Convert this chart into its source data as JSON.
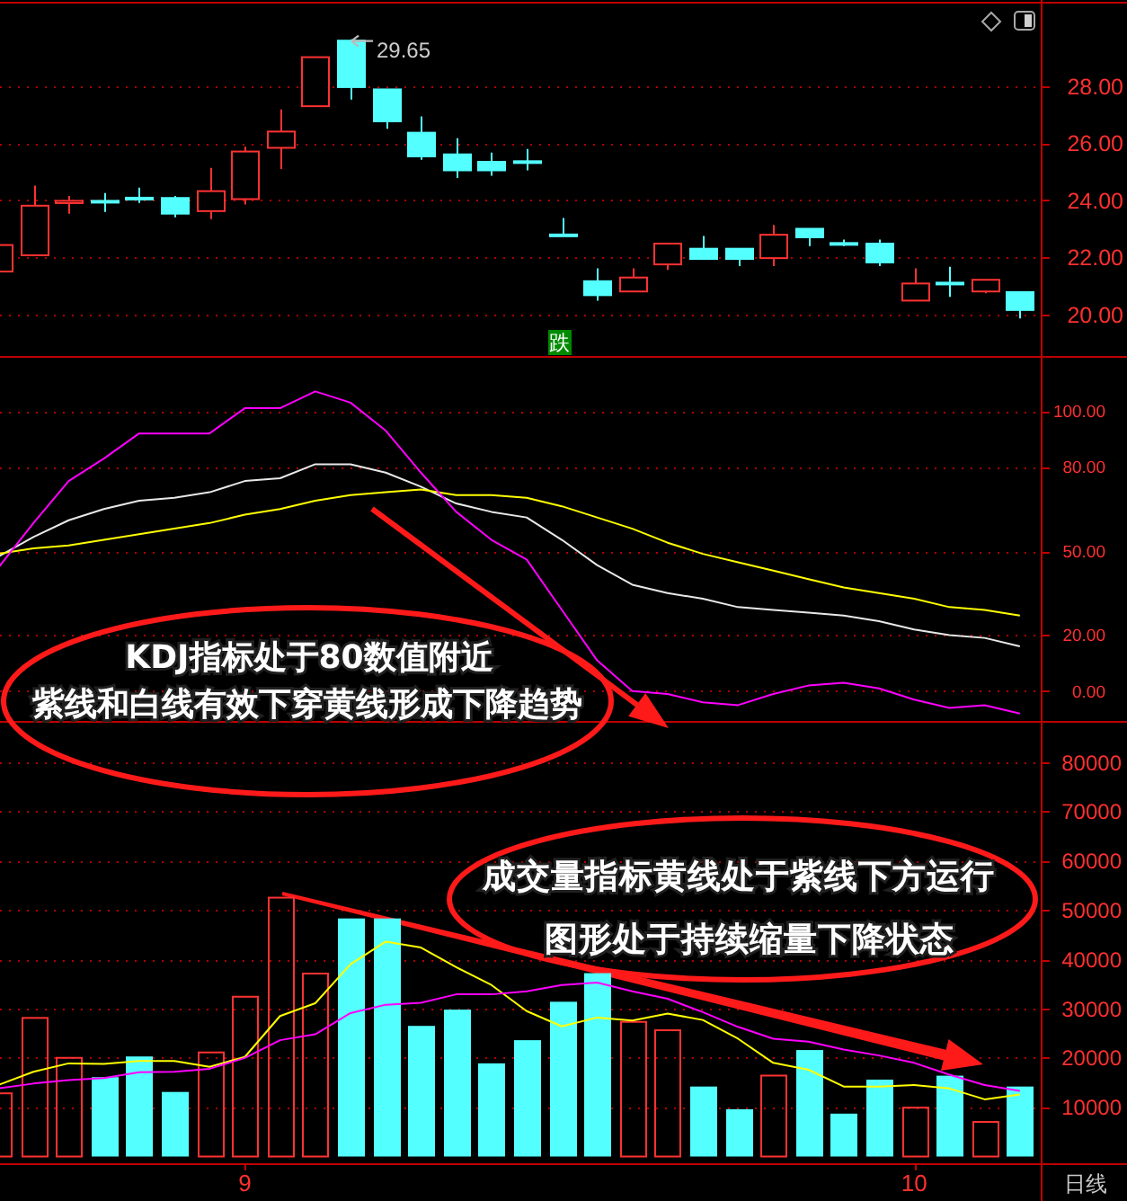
{
  "chart_data": [
    {
      "type": "candlestick",
      "categories": [
        null,
        null,
        null,
        null,
        null,
        null,
        null,
        "9",
        null,
        null,
        null,
        null,
        null,
        null,
        null,
        null,
        null,
        null,
        null,
        null,
        null,
        null,
        null,
        null,
        null,
        null,
        "10",
        null,
        null,
        null
      ],
      "ohlc": [
        [
          21.5,
          22.43,
          21.5,
          22.43
        ],
        [
          22.07,
          24.51,
          22.07,
          23.81
        ],
        [
          23.9,
          24.15,
          23.53,
          23.98
        ],
        [
          23.98,
          24.25,
          23.59,
          23.96
        ],
        [
          24.09,
          24.44,
          23.91,
          24.07
        ],
        [
          24.08,
          24.15,
          23.4,
          23.53
        ],
        [
          23.62,
          25.14,
          23.34,
          24.32
        ],
        [
          24.04,
          25.88,
          23.85,
          25.71
        ],
        [
          25.84,
          27.19,
          25.1,
          26.41
        ],
        [
          27.3,
          29.02,
          27.3,
          29.02
        ],
        [
          29.6,
          29.65,
          27.53,
          27.97
        ],
        [
          27.89,
          27.89,
          26.51,
          26.77
        ],
        [
          26.37,
          26.94,
          25.42,
          25.54
        ],
        [
          25.61,
          26.18,
          24.78,
          25.05
        ],
        [
          25.35,
          25.67,
          24.86,
          25.05
        ],
        [
          25.37,
          25.8,
          25.05,
          25.33
        ],
        [
          22.8,
          23.38,
          22.78,
          22.78
        ],
        [
          21.16,
          21.61,
          20.48,
          20.67
        ],
        [
          20.8,
          21.61,
          20.8,
          21.29
        ],
        [
          21.75,
          22.48,
          21.56,
          22.48
        ],
        [
          22.3,
          22.75,
          21.94,
          21.94
        ],
        [
          22.3,
          22.3,
          21.69,
          21.94
        ],
        [
          21.97,
          23.13,
          21.69,
          22.79
        ],
        [
          23.0,
          23.0,
          22.39,
          22.7
        ],
        [
          22.5,
          22.62,
          22.39,
          22.48
        ],
        [
          22.48,
          22.62,
          21.69,
          21.82
        ],
        [
          20.48,
          21.61,
          20.48,
          21.08
        ],
        [
          21.11,
          21.67,
          20.61,
          21.09
        ],
        [
          20.8,
          21.21,
          20.74,
          21.21
        ],
        [
          20.78,
          20.78,
          19.85,
          20.15
        ]
      ],
      "colors": [
        "#ff3232",
        "#ff3232",
        "#ff3232",
        "#54ffff",
        "#54ffff",
        "#54ffff",
        "#ff3232",
        "#ff3232",
        "#ff3232",
        "#ff3232",
        "#54ffff",
        "#54ffff",
        "#54ffff",
        "#54ffff",
        "#54ffff",
        "#54ffff",
        "#54ffff",
        "#54ffff",
        "#ff3232",
        "#ff3232",
        "#54ffff",
        "#54ffff",
        "#ff3232",
        "#54ffff",
        "#54ffff",
        "#54ffff",
        "#ff3232",
        "#54ffff",
        "#ff3232",
        "#54ffff"
      ],
      "ylim": [
        18.6,
        30.9
      ],
      "yticks": [
        {
          "value": 20,
          "label": "20.00"
        },
        {
          "value": 22,
          "label": "22.00"
        },
        {
          "value": 24,
          "label": "24.00"
        },
        {
          "value": 26,
          "label": "26.00"
        },
        {
          "value": 28,
          "label": "28.00"
        }
      ],
      "grid": "y",
      "tick_labels": "y",
      "annotations": [
        "29.65",
        "跌"
      ]
    },
    {
      "type": "line",
      "categories": [
        null,
        null,
        null,
        null,
        null,
        null,
        null,
        "9",
        null,
        null,
        null,
        null,
        null,
        null,
        null,
        null,
        null,
        null,
        null,
        null,
        null,
        null,
        null,
        null,
        null,
        null,
        "10",
        null,
        null,
        null
      ],
      "series": [
        {
          "color": "#e8e8e8",
          "values": [
            48,
            55,
            61,
            65,
            68,
            69,
            71,
            75,
            76,
            81,
            81,
            78,
            73,
            67,
            64,
            62,
            54,
            45,
            38,
            35,
            33,
            30,
            29,
            28,
            27,
            25,
            22,
            20,
            19,
            16
          ]
        },
        {
          "color": "#ffff00",
          "values": [
            49,
            51,
            52,
            54,
            56,
            58,
            60,
            63,
            65,
            68,
            70,
            71,
            72,
            70,
            70,
            69,
            66,
            62,
            58,
            53,
            49,
            46,
            43,
            40,
            37,
            35,
            33,
            30,
            29,
            27
          ]
        },
        {
          "color": "#ff00ff",
          "values": [
            44,
            60,
            75,
            83,
            92,
            92,
            92,
            101,
            101,
            107,
            103,
            93,
            78,
            64,
            54,
            47,
            29,
            11,
            0,
            -1,
            -4,
            -5,
            -1,
            2,
            3,
            1,
            -3,
            -6,
            -5,
            -8
          ]
        }
      ],
      "ylim": [
        -10,
        119
      ],
      "yticks": [
        {
          "value": 0,
          "label": "0.00"
        },
        {
          "value": 20,
          "label": "20.00"
        },
        {
          "value": 50,
          "label": "50.00"
        },
        {
          "value": 80,
          "label": "80.00"
        },
        {
          "value": 100,
          "label": "100.00"
        }
      ],
      "grid": "y",
      "tick_labels": "y",
      "annotations": [
        "KDJ指标处于80数值附近",
        "紫线和白线有效下穿黄线形成下降趋势"
      ]
    },
    {
      "type": "bar",
      "categories": [
        null,
        null,
        null,
        null,
        null,
        null,
        null,
        "9",
        null,
        null,
        null,
        null,
        null,
        null,
        null,
        null,
        null,
        null,
        null,
        null,
        null,
        null,
        null,
        null,
        null,
        null,
        "10",
        null,
        null,
        null
      ],
      "series": [
        {
          "values": [
            13000,
            28300,
            20200,
            16100,
            20300,
            13100,
            21300,
            32600,
            52700,
            37300,
            48300,
            48300,
            26500,
            29800,
            18900,
            23600,
            31400,
            37200,
            27500,
            25800,
            14200,
            9600,
            16600,
            21600,
            8700,
            15600,
            10100,
            16400,
            7200,
            14200
          ],
          "colors": [
            "#ff3232",
            "#ff3232",
            "#ff3232",
            "#54ffff",
            "#54ffff",
            "#54ffff",
            "#ff3232",
            "#ff3232",
            "#ff3232",
            "#ff3232",
            "#54ffff",
            "#54ffff",
            "#54ffff",
            "#54ffff",
            "#54ffff",
            "#54ffff",
            "#54ffff",
            "#54ffff",
            "#ff3232",
            "#ff3232",
            "#54ffff",
            "#54ffff",
            "#ff3232",
            "#54ffff",
            "#54ffff",
            "#54ffff",
            "#ff3232",
            "#54ffff",
            "#ff3232",
            "#54ffff"
          ]
        },
        {
          "type": "line",
          "color": "#ffff00",
          "values": [
            14500,
            17200,
            18900,
            18800,
            19400,
            19400,
            18200,
            20200,
            28500,
            31100,
            39000,
            43600,
            42400,
            38400,
            34800,
            29500,
            26400,
            28200,
            27600,
            29000,
            27700,
            23900,
            19000,
            17600,
            14200,
            14200,
            14500,
            13800,
            11600,
            12600
          ]
        },
        {
          "type": "line",
          "color": "#ff00ff",
          "values": [
            13800,
            14800,
            15500,
            15900,
            17100,
            17200,
            17800,
            20000,
            23600,
            24800,
            29100,
            30800,
            31200,
            32900,
            32900,
            33500,
            34800,
            35300,
            33500,
            32000,
            29300,
            26300,
            23900,
            23300,
            21700,
            20500,
            19000,
            16600,
            14500,
            13300
          ]
        }
      ],
      "ylim": [
        -1000,
        88000
      ],
      "yticks": [
        10000,
        20000,
        30000,
        40000,
        50000,
        60000,
        70000,
        80000
      ],
      "grid": "y",
      "annotations": [
        "成交量指标黄线处于紫线下方运行",
        "图形处于持续缩量下降状态",
        "日线"
      ]
    }
  ]
}
